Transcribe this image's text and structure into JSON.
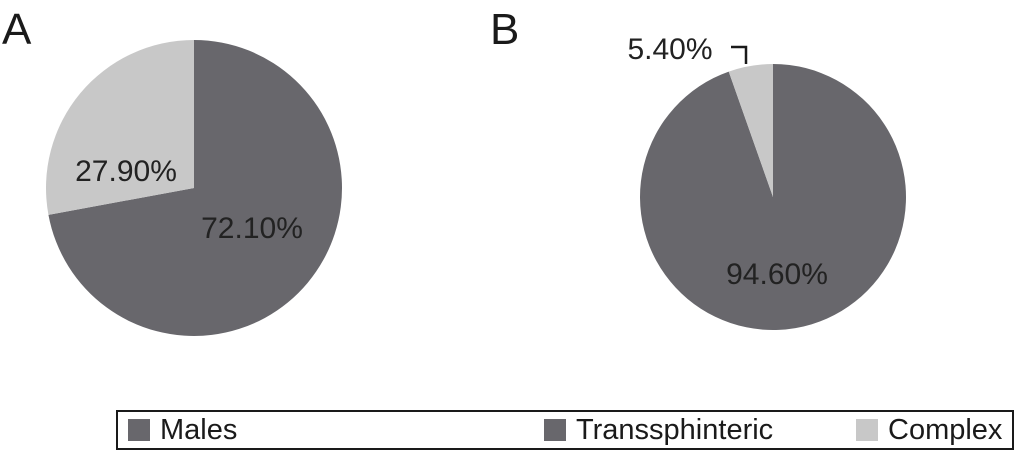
{
  "colors": {
    "dark": "#68676c",
    "light": "#c8c8c8"
  },
  "chart_data": [
    {
      "type": "pie",
      "panel": "A",
      "slices": [
        {
          "label": "72.10%",
          "value": 72.1,
          "color": "#68676c"
        },
        {
          "label": "27.90%",
          "value": 27.9,
          "color": "#c8c8c8"
        }
      ]
    },
    {
      "type": "pie",
      "panel": "B",
      "slices": [
        {
          "label": "94.60%",
          "value": 94.6,
          "color": "#68676c"
        },
        {
          "label": "5.40%",
          "value": 5.4,
          "color": "#c8c8c8"
        }
      ]
    }
  ],
  "legend": [
    {
      "label": "Males",
      "color": "#68676c"
    },
    {
      "label": "Transsphinteric",
      "color": "#68676c"
    },
    {
      "label": "Complex",
      "color": "#c8c8c8"
    }
  ]
}
